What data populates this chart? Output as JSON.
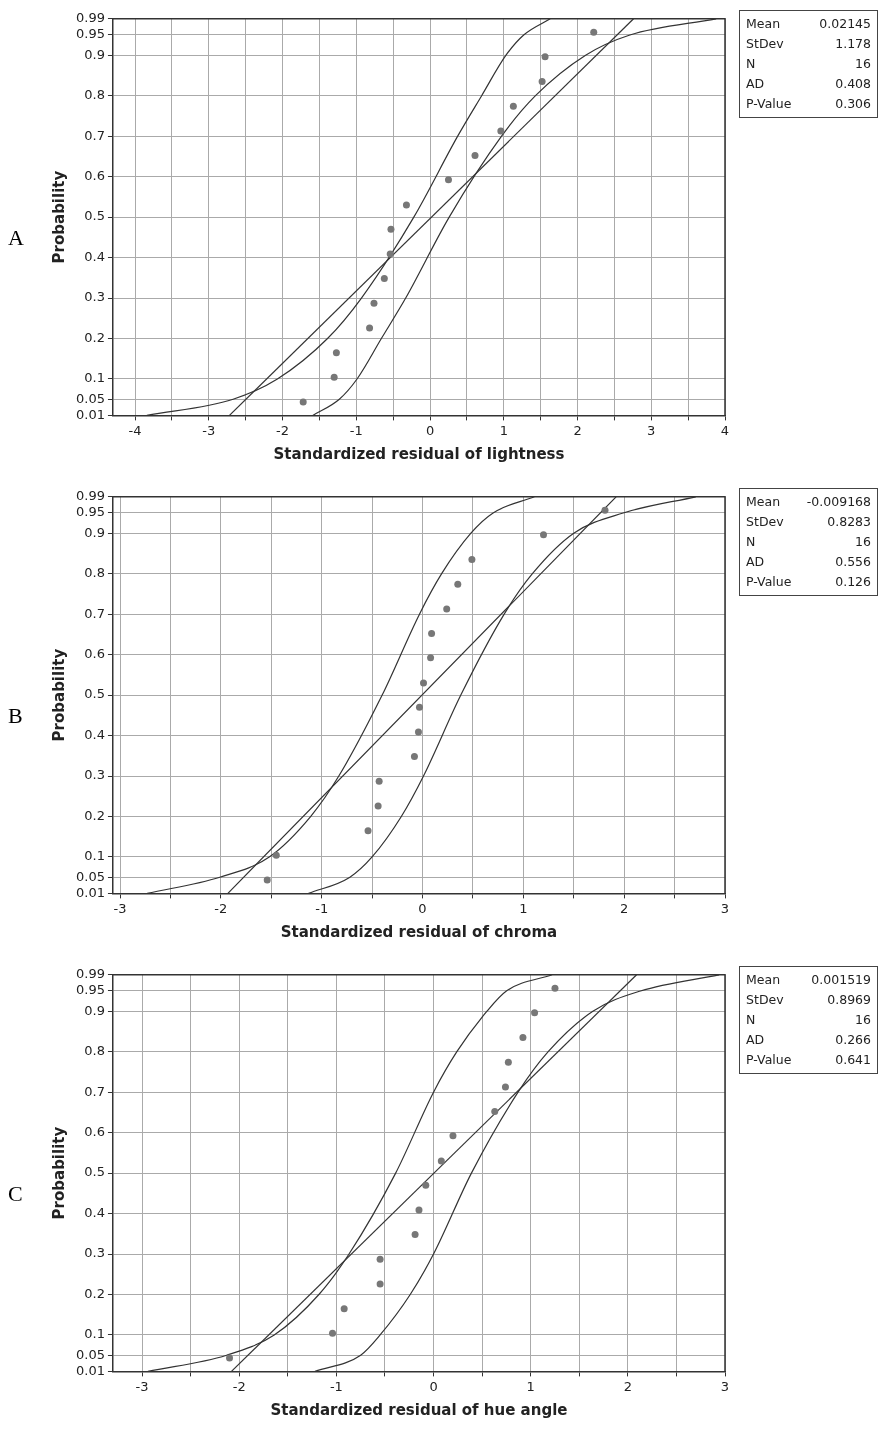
{
  "chart_data": [
    {
      "type": "scatter",
      "title": "A",
      "xlabel": "Standardized residual of lightness",
      "ylabel": "Probability",
      "marker": "circle",
      "grid": true,
      "legend": false,
      "xlim": [
        -4.3,
        4
      ],
      "xticks": [
        -4,
        {
          "value": -3.5,
          "label": null
        },
        -3,
        {
          "value": -2.5,
          "label": null
        },
        -2,
        {
          "value": -1.5,
          "label": null
        },
        -1,
        {
          "value": -0.5,
          "label": null
        },
        0,
        {
          "value": 0.5,
          "label": null
        },
        1,
        {
          "value": 1.5,
          "label": null
        },
        2,
        {
          "value": 2.5,
          "label": null
        },
        3,
        {
          "value": 3.5,
          "label": null
        },
        4
      ],
      "ylim": [
        0.01,
        0.99
      ],
      "yticks": [
        0.01,
        0.05,
        0.1,
        0.2,
        0.3,
        0.4,
        0.5,
        0.6,
        0.7,
        0.8,
        0.9,
        0.95,
        0.99
      ],
      "series": [
        {
          "type": "scatter",
          "color": "#777777",
          "x": [
            -1.72,
            -1.3,
            -1.27,
            -0.82,
            -0.76,
            -0.62,
            -0.54,
            -0.53,
            -0.32,
            0.25,
            0.61,
            0.96,
            1.13,
            1.52,
            1.56,
            2.22
          ],
          "values": [
            0.043,
            0.104,
            0.165,
            0.226,
            0.287,
            0.348,
            0.409,
            0.47,
            0.53,
            0.592,
            0.652,
            0.713,
            0.774,
            0.835,
            0.896,
            0.957
          ]
        },
        {
          "type": "line",
          "marker": "none",
          "color": "#333333",
          "x": [
            -2.72,
            2.76
          ],
          "values": [
            0.01,
            0.99
          ]
        },
        {
          "type": "line",
          "marker": "none",
          "color": "#333333",
          "x": [
            -3.84,
            -2.67,
            -2.07,
            -1.39,
            -0.93,
            -0.22,
            0.375,
            0.7,
            1.03,
            1.27,
            1.63
          ],
          "values": [
            0.01,
            0.05,
            0.1,
            0.2,
            0.3,
            0.5,
            0.7,
            0.8,
            0.9,
            0.95,
            0.99
          ]
        },
        {
          "type": "line",
          "marker": "none",
          "color": "#333333",
          "x": [
            -1.59,
            -1.23,
            -0.99,
            -0.66,
            -0.33,
            0.26,
            0.97,
            1.43,
            2.11,
            2.71,
            3.88
          ],
          "values": [
            0.01,
            0.05,
            0.1,
            0.2,
            0.3,
            0.5,
            0.7,
            0.8,
            0.9,
            0.95,
            0.99
          ]
        }
      ],
      "annotations": [
        "Mean 0.02145",
        "StDev 1.178",
        "N 16",
        "AD 0.408",
        "P-Value 0.306"
      ]
    },
    {
      "type": "scatter",
      "title": "B",
      "xlabel": "Standardized residual of chroma",
      "ylabel": "Probability",
      "marker": "circle",
      "grid": true,
      "legend": false,
      "xlim": [
        -3.07,
        3
      ],
      "xticks": [
        -3,
        {
          "value": -2.5,
          "label": null
        },
        -2,
        {
          "value": -1.5,
          "label": null
        },
        -1,
        {
          "value": -0.5,
          "label": null
        },
        0,
        {
          "value": 0.5,
          "label": null
        },
        1,
        {
          "value": 1.5,
          "label": null
        },
        2,
        {
          "value": 2.5,
          "label": null
        },
        3
      ],
      "ylim": [
        0.01,
        0.99
      ],
      "yticks": [
        0.01,
        0.05,
        0.1,
        0.2,
        0.3,
        0.4,
        0.5,
        0.6,
        0.7,
        0.8,
        0.9,
        0.95,
        0.99
      ],
      "series": [
        {
          "type": "scatter",
          "color": "#777777",
          "x": [
            -1.54,
            -1.45,
            -0.54,
            -0.44,
            -0.43,
            -0.08,
            -0.04,
            -0.03,
            0.01,
            0.08,
            0.09,
            0.24,
            0.35,
            0.49,
            1.2,
            1.81
          ],
          "values": [
            0.043,
            0.104,
            0.165,
            0.226,
            0.287,
            0.348,
            0.409,
            0.47,
            0.53,
            0.592,
            0.652,
            0.713,
            0.774,
            0.835,
            0.896,
            0.957
          ]
        },
        {
          "type": "line",
          "marker": "none",
          "color": "#333333",
          "x": [
            -1.93,
            1.92
          ],
          "values": [
            0.01,
            0.99
          ]
        },
        {
          "type": "line",
          "marker": "none",
          "color": "#333333",
          "x": [
            -2.73,
            -2.01,
            -1.52,
            -1.11,
            -0.83,
            -0.4,
            -0.03,
            0.19,
            0.48,
            0.7,
            1.11
          ],
          "values": [
            0.01,
            0.05,
            0.1,
            0.2,
            0.3,
            0.5,
            0.7,
            0.8,
            0.9,
            0.95,
            0.99
          ]
        },
        {
          "type": "line",
          "marker": "none",
          "color": "#333333",
          "x": [
            -1.13,
            -0.72,
            -0.5,
            -0.21,
            0.01,
            0.38,
            0.81,
            1.09,
            1.5,
            1.99,
            2.71
          ],
          "values": [
            0.01,
            0.05,
            0.1,
            0.2,
            0.3,
            0.5,
            0.7,
            0.8,
            0.9,
            0.95,
            0.99
          ]
        }
      ],
      "annotations": [
        "Mean -0.009168",
        "StDev 0.8283",
        "N 16",
        "AD 0.556",
        "P-Value 0.126"
      ]
    },
    {
      "type": "scatter",
      "title": "C",
      "xlabel": "Standardized residual of hue angle",
      "ylabel": "Probability",
      "marker": "circle",
      "grid": true,
      "legend": false,
      "xlim": [
        -3.3,
        3
      ],
      "xticks": [
        -3,
        {
          "value": -2.5,
          "label": null
        },
        -2,
        {
          "value": -1.5,
          "label": null
        },
        -1,
        {
          "value": -0.5,
          "label": null
        },
        0,
        {
          "value": 0.5,
          "label": null
        },
        1,
        {
          "value": 1.5,
          "label": null
        },
        2,
        {
          "value": 2.5,
          "label": null
        },
        3
      ],
      "ylim": [
        0.01,
        0.99
      ],
      "yticks": [
        0.01,
        0.05,
        0.1,
        0.2,
        0.3,
        0.4,
        0.5,
        0.6,
        0.7,
        0.8,
        0.9,
        0.95,
        0.99
      ],
      "series": [
        {
          "type": "scatter",
          "color": "#777777",
          "x": [
            -2.1,
            -1.04,
            -0.92,
            -0.55,
            -0.55,
            -0.19,
            -0.15,
            -0.08,
            0.08,
            0.2,
            0.63,
            0.74,
            0.77,
            0.92,
            1.04,
            1.25
          ],
          "values": [
            0.043,
            0.104,
            0.165,
            0.226,
            0.287,
            0.348,
            0.409,
            0.47,
            0.53,
            0.592,
            0.652,
            0.713,
            0.774,
            0.835,
            0.896,
            0.957
          ]
        },
        {
          "type": "line",
          "marker": "none",
          "color": "#333333",
          "x": [
            -2.08,
            2.09
          ],
          "values": [
            0.01,
            0.99
          ]
        },
        {
          "type": "line",
          "marker": "none",
          "color": "#333333",
          "x": [
            -2.94,
            -2.13,
            -1.64,
            -1.18,
            -0.87,
            -0.39,
            0.0,
            0.24,
            0.55,
            0.75,
            1.22
          ],
          "values": [
            0.01,
            0.05,
            0.1,
            0.2,
            0.3,
            0.5,
            0.7,
            0.8,
            0.9,
            0.95,
            0.99
          ]
        },
        {
          "type": "line",
          "marker": "none",
          "color": "#333333",
          "x": [
            -1.22,
            -0.75,
            -0.55,
            -0.24,
            0.0,
            0.39,
            0.87,
            1.18,
            1.64,
            2.13,
            2.94
          ],
          "values": [
            0.01,
            0.05,
            0.1,
            0.2,
            0.3,
            0.5,
            0.7,
            0.8,
            0.9,
            0.95,
            0.99
          ]
        }
      ],
      "annotations": [
        "Mean 0.001519",
        "StDev 0.8969",
        "N 16",
        "AD 0.266",
        "P-Value 0.641"
      ]
    }
  ]
}
